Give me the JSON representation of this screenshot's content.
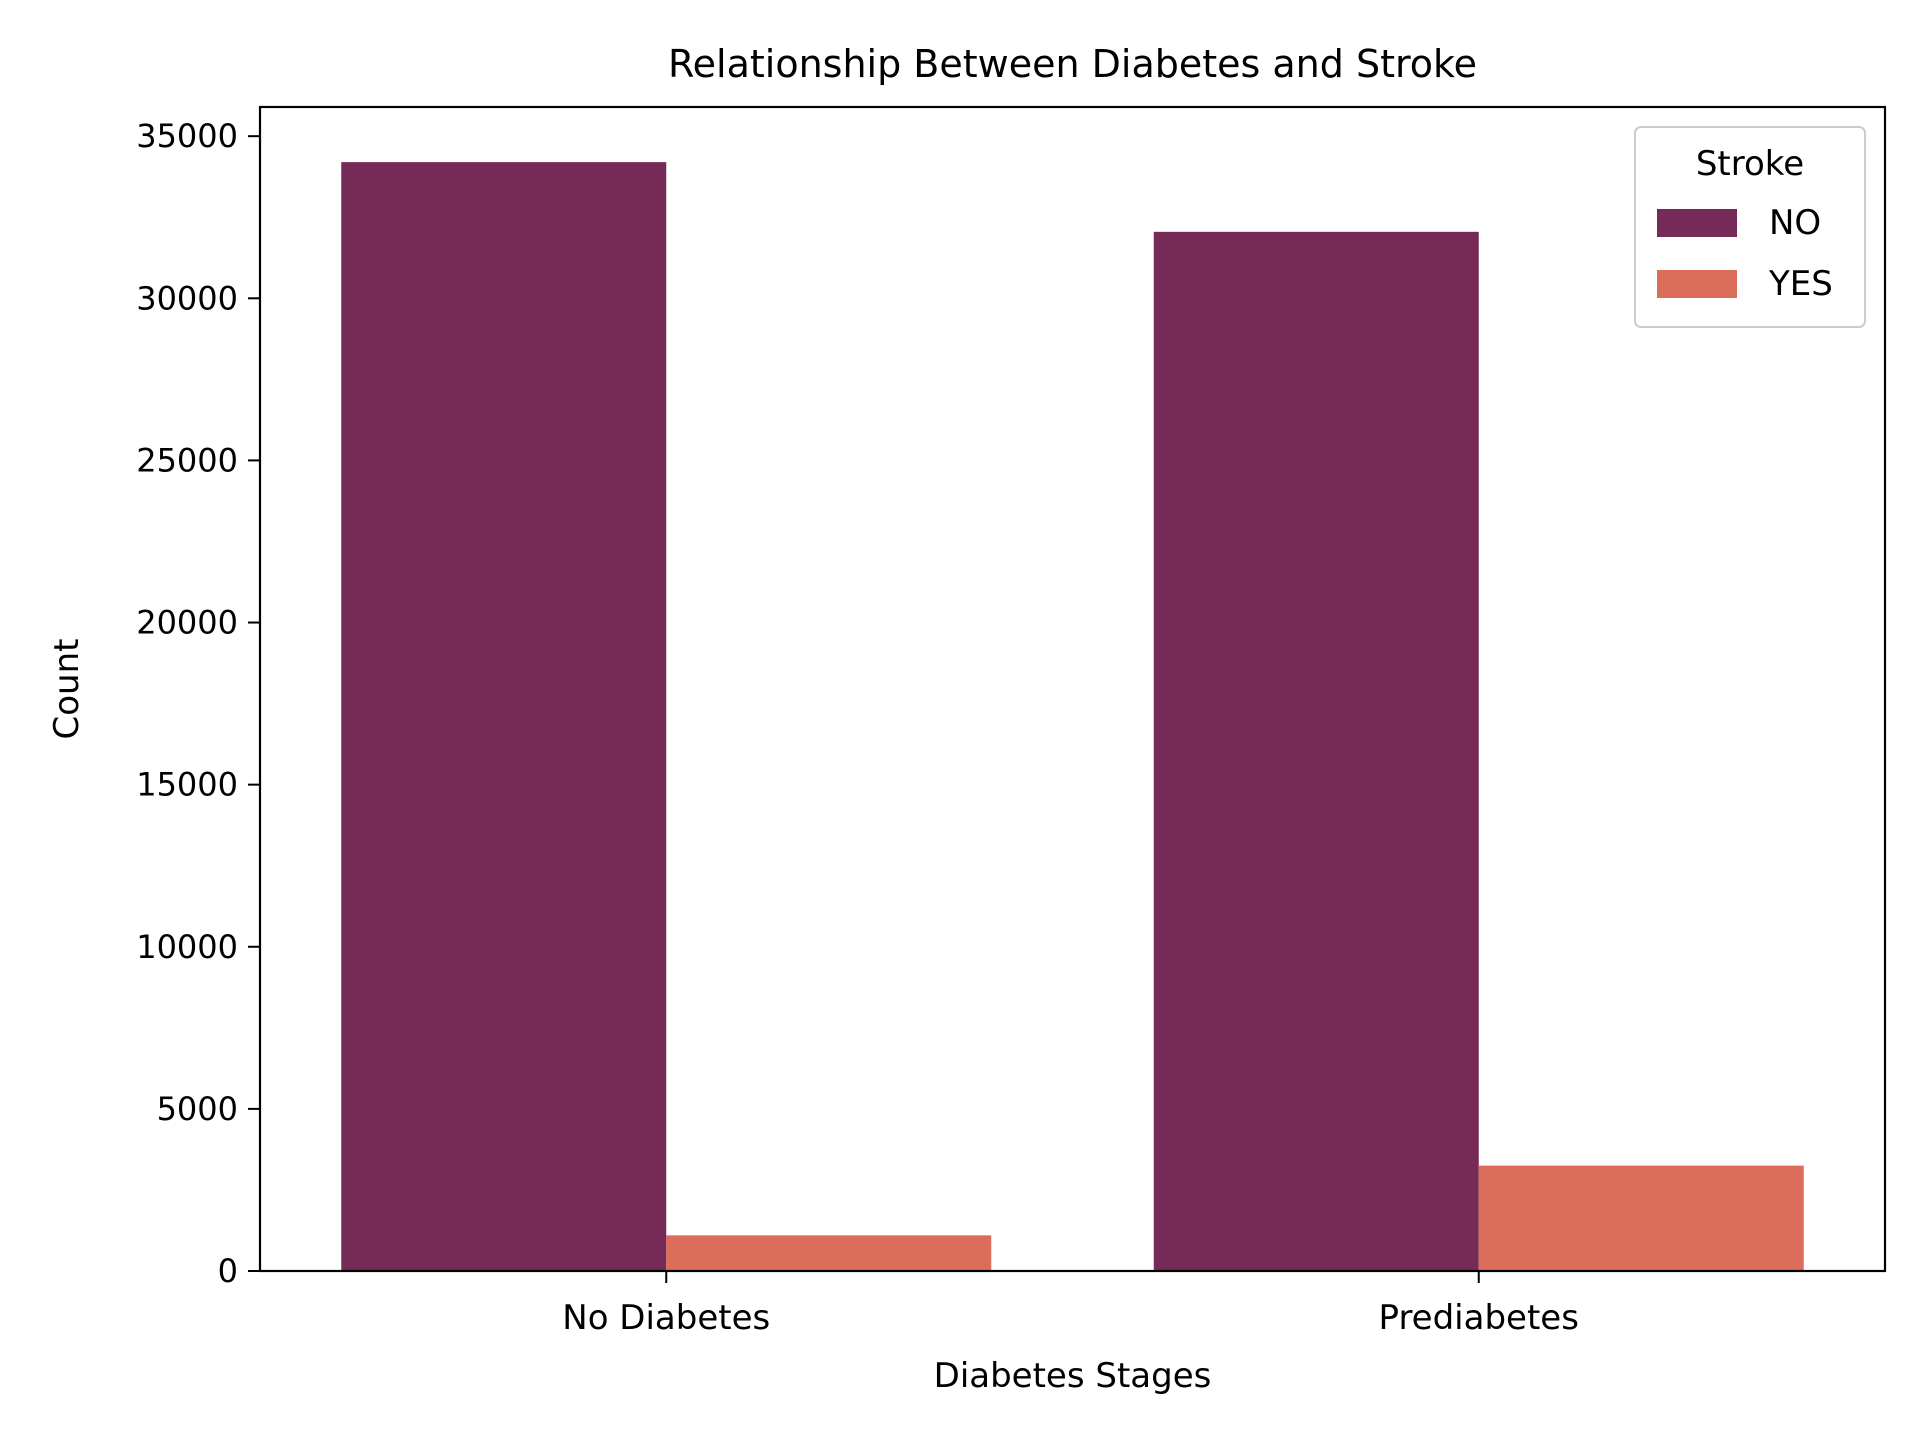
{
  "chart_data": {
    "type": "bar",
    "title": "Relationship Between Diabetes and Stroke",
    "xlabel": "Diabetes Stages",
    "ylabel": "Count",
    "categories": [
      "No Diabetes",
      "Prediabetes"
    ],
    "series": [
      {
        "name": "NO",
        "color": "#762a57",
        "values": [
          34200,
          32050
        ]
      },
      {
        "name": "YES",
        "color": "#dc6d5a",
        "values": [
          1100,
          3250
        ]
      }
    ],
    "ylim": [
      0,
      35900
    ],
    "yticks": [
      0,
      5000,
      10000,
      15000,
      20000,
      25000,
      30000,
      35000
    ],
    "legend": {
      "title": "Stroke",
      "placement": "top-right"
    },
    "grid": false
  }
}
